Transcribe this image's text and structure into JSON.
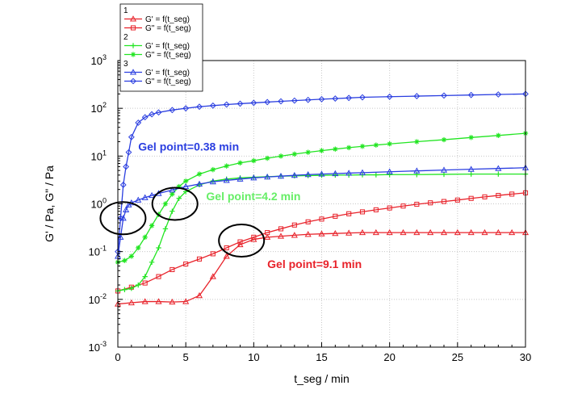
{
  "chart_data": {
    "type": "line",
    "xlabel": "t_seg / min",
    "ylabel": "G' / Pa, G\" / Pa",
    "xlim": [
      0,
      30
    ],
    "ylim_exponents": [
      -3,
      3
    ],
    "y_scale": "log",
    "x_ticks": [
      "0",
      "5",
      "10",
      "15",
      "20",
      "25",
      "30"
    ],
    "y_ticks": [
      {
        "base": "10",
        "exp": "-3"
      },
      {
        "base": "10",
        "exp": "-2"
      },
      {
        "base": "10",
        "exp": "-1"
      },
      {
        "base": "10",
        "exp": "0"
      },
      {
        "base": "10",
        "exp": "1"
      },
      {
        "base": "10",
        "exp": "2"
      },
      {
        "base": "10",
        "exp": "3"
      }
    ],
    "grid": true,
    "legend": {
      "position": "top-left",
      "groups": [
        {
          "header": "1",
          "entries": [
            "G' = f(t_seg)",
            "G\" = f(t_seg)"
          ],
          "color": "#e8222a"
        },
        {
          "header": "2",
          "entries": [
            "G' = f(t_seg)",
            "G\" = f(t_seg)"
          ],
          "color": "#22e522"
        },
        {
          "header": "3",
          "entries": [
            "G' = f(t_seg)",
            "G\" = f(t_seg)"
          ],
          "color": "#2a3ee0"
        }
      ]
    },
    "series": [
      {
        "group": "1",
        "marker": "triangle",
        "color": "#e8222a",
        "x": [
          0,
          1,
          2,
          3,
          4,
          5,
          6,
          7,
          8,
          9,
          10,
          11,
          12,
          13,
          14,
          15,
          16,
          17,
          18,
          19,
          20,
          21,
          22,
          23,
          24,
          25,
          26,
          27,
          28,
          29,
          30
        ],
        "y": [
          0.008,
          0.0085,
          0.009,
          0.009,
          0.0088,
          0.009,
          0.012,
          0.03,
          0.08,
          0.14,
          0.18,
          0.2,
          0.21,
          0.22,
          0.23,
          0.235,
          0.24,
          0.245,
          0.25,
          0.25,
          0.25,
          0.25,
          0.25,
          0.25,
          0.25,
          0.25,
          0.25,
          0.25,
          0.25,
          0.25,
          0.25
        ]
      },
      {
        "group": "1",
        "marker": "square",
        "color": "#e8222a",
        "x": [
          0,
          1,
          2,
          3,
          4,
          5,
          6,
          7,
          8,
          9,
          10,
          11,
          12,
          13,
          14,
          15,
          16,
          17,
          18,
          19,
          20,
          21,
          22,
          23,
          24,
          25,
          26,
          27,
          28,
          29,
          30
        ],
        "y": [
          0.015,
          0.018,
          0.022,
          0.03,
          0.042,
          0.055,
          0.07,
          0.09,
          0.12,
          0.16,
          0.2,
          0.25,
          0.3,
          0.36,
          0.42,
          0.48,
          0.55,
          0.62,
          0.68,
          0.75,
          0.82,
          0.9,
          0.98,
          1.05,
          1.12,
          1.2,
          1.3,
          1.4,
          1.5,
          1.6,
          1.7
        ]
      },
      {
        "group": "2",
        "marker": "plus",
        "color": "#22e522",
        "x": [
          0,
          0.5,
          1,
          1.5,
          2,
          2.5,
          3,
          3.5,
          4,
          4.5,
          5,
          6,
          7,
          8,
          9,
          10,
          11,
          12,
          13,
          14,
          15,
          16,
          17,
          18,
          19,
          20,
          22,
          24,
          26,
          28,
          30
        ],
        "y": [
          0.015,
          0.016,
          0.017,
          0.02,
          0.03,
          0.06,
          0.12,
          0.3,
          0.7,
          1.3,
          1.8,
          2.5,
          3.0,
          3.3,
          3.5,
          3.6,
          3.7,
          3.8,
          3.85,
          3.9,
          3.95,
          4.0,
          4.0,
          4.05,
          4.05,
          4.1,
          4.1,
          4.15,
          4.2,
          4.2,
          4.2
        ]
      },
      {
        "group": "2",
        "marker": "star",
        "color": "#22e522",
        "x": [
          0,
          0.5,
          1,
          1.5,
          2,
          2.5,
          3,
          3.5,
          4,
          4.5,
          5,
          6,
          7,
          8,
          9,
          10,
          11,
          12,
          13,
          14,
          15,
          16,
          17,
          18,
          19,
          20,
          22,
          24,
          26,
          28,
          30
        ],
        "y": [
          0.06,
          0.065,
          0.08,
          0.12,
          0.2,
          0.35,
          0.6,
          1.0,
          1.6,
          2.3,
          3.0,
          4.2,
          5.2,
          6.2,
          7.2,
          8.0,
          9.0,
          10.0,
          11.0,
          12.0,
          13.0,
          14.0,
          15.0,
          16.0,
          17.0,
          18.0,
          20.0,
          22.0,
          24.5,
          27.0,
          30.0
        ]
      },
      {
        "group": "3",
        "marker": "triangle",
        "color": "#2a3ee0",
        "x": [
          0,
          0.2,
          0.4,
          0.6,
          0.8,
          1,
          1.5,
          2,
          2.5,
          3,
          4,
          5,
          6,
          7,
          8,
          9,
          10,
          11,
          12,
          13,
          14,
          15,
          16,
          17,
          18,
          20,
          22,
          24,
          26,
          28,
          30
        ],
        "y": [
          0.08,
          0.2,
          0.5,
          0.75,
          0.95,
          1.05,
          1.2,
          1.35,
          1.5,
          1.65,
          1.95,
          2.3,
          2.6,
          2.9,
          3.1,
          3.3,
          3.5,
          3.65,
          3.8,
          3.95,
          4.1,
          4.2,
          4.3,
          4.4,
          4.5,
          4.7,
          4.9,
          5.1,
          5.3,
          5.5,
          5.7
        ]
      },
      {
        "group": "3",
        "marker": "diamond",
        "color": "#2a3ee0",
        "x": [
          0,
          0.2,
          0.4,
          0.6,
          0.8,
          1,
          1.5,
          2,
          2.5,
          3,
          4,
          5,
          6,
          7,
          8,
          9,
          10,
          11,
          12,
          13,
          14,
          15,
          16,
          17,
          18,
          20,
          22,
          24,
          26,
          28,
          30
        ],
        "y": [
          0.1,
          0.5,
          2.5,
          6,
          12,
          25,
          50,
          65,
          75,
          82,
          92,
          100,
          108,
          114,
          120,
          125,
          130,
          135,
          140,
          145,
          150,
          155,
          160,
          165,
          170,
          175,
          180,
          185,
          190,
          195,
          200
        ]
      }
    ],
    "annotations": [
      {
        "text": "Gel point=0.38 min",
        "color": "#2a3ee0",
        "x": 1.5,
        "y": 13
      },
      {
        "text": "Gel point=4.2 min",
        "color": "#66ee66",
        "x": 6.5,
        "y": 1.2
      },
      {
        "text": "Gel point=9.1 min",
        "color": "#e8222a",
        "x": 11,
        "y": 0.045
      }
    ],
    "ellipses": [
      {
        "x": 0.38,
        "y": 0.5
      },
      {
        "x": 4.2,
        "y": 1.0
      },
      {
        "x": 9.1,
        "y": 0.17
      }
    ]
  }
}
